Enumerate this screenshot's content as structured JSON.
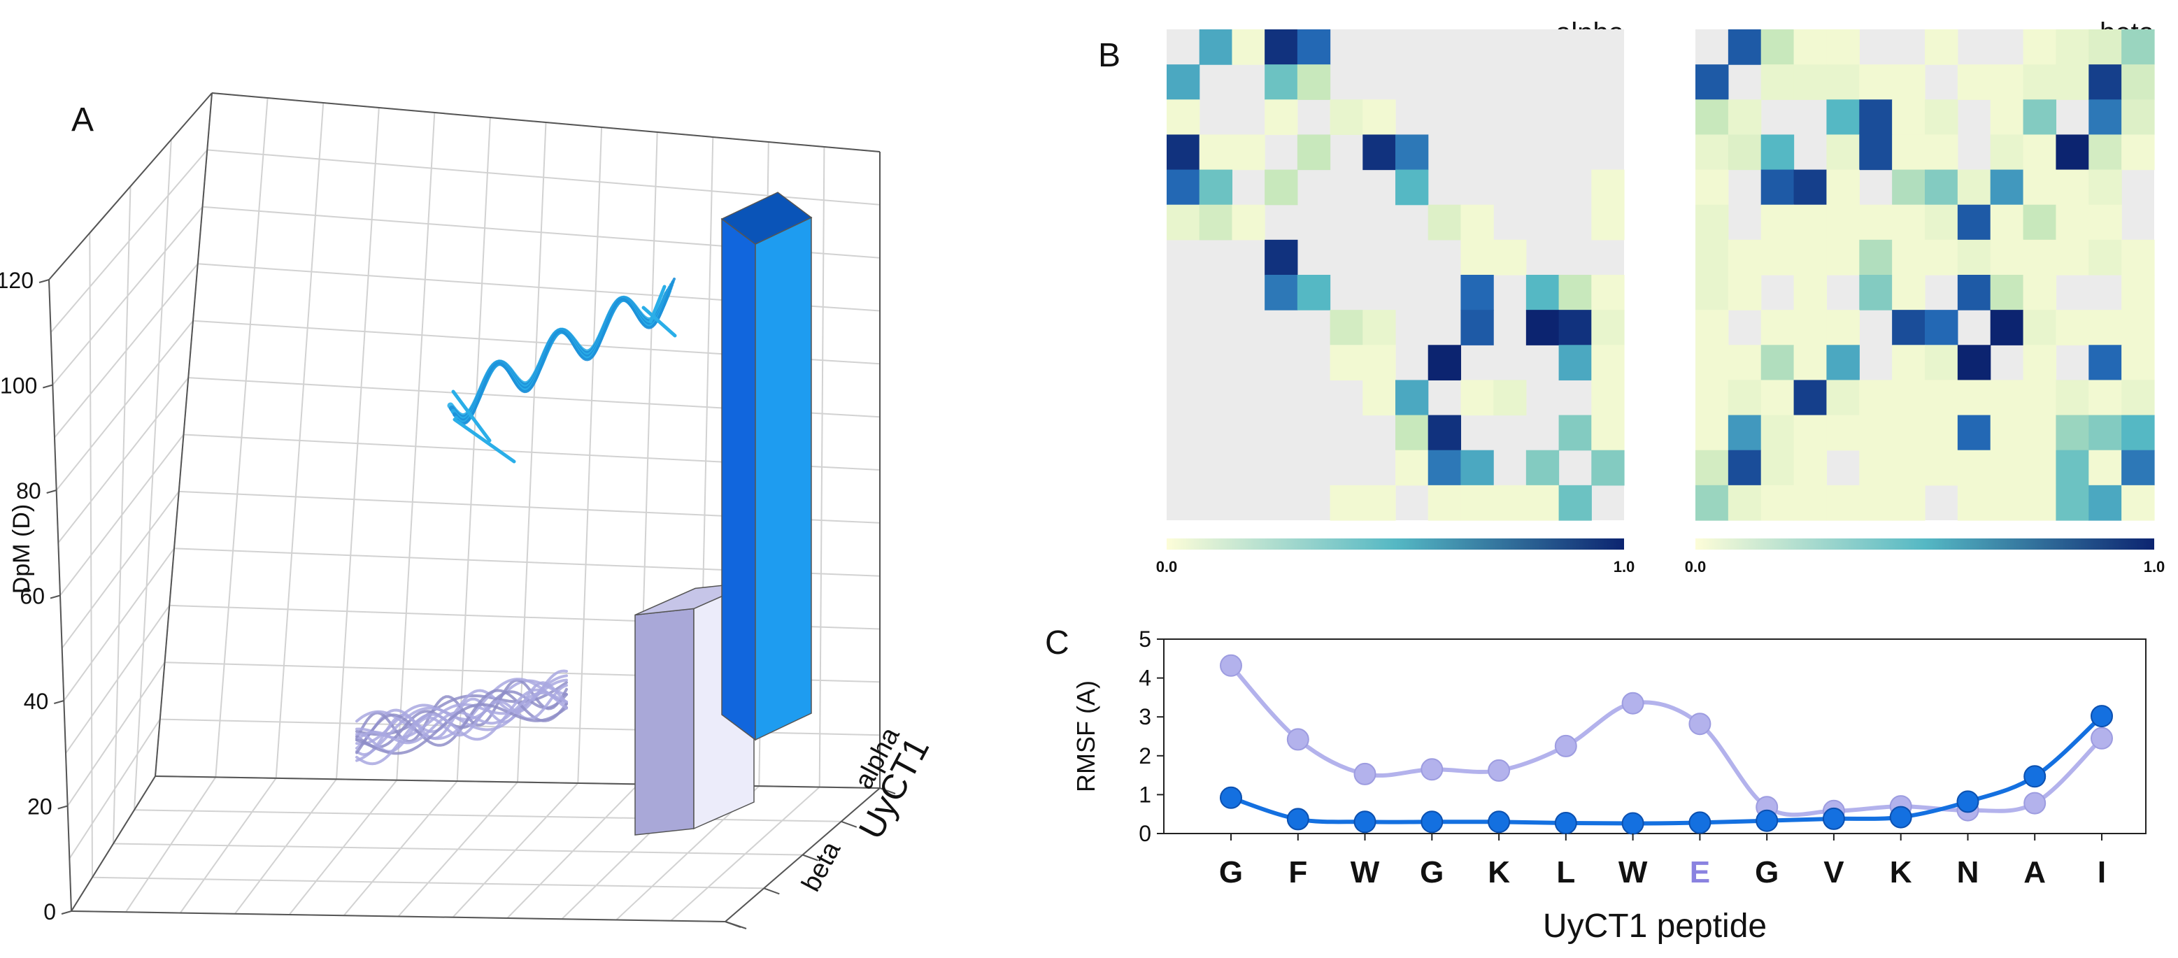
{
  "panels": {
    "A": "A",
    "B": "B",
    "C": "C"
  },
  "colors": {
    "alpha": "#1166dd",
    "alpha_side": "#1e9cf0",
    "alpha_top": "#0a54b8",
    "beta": "#a9a8d8",
    "beta_side": "#ececfa",
    "beta_top": "#c6c5e8",
    "helix": "#2aaee8",
    "coil": "#a9a8e0",
    "heat_low": "#fdfdd8",
    "heat_mid": "#55b8c4",
    "heat_high": "#0c2470",
    "heat_empty": "#ebebeb",
    "rmsf_alpha": "#1470e0",
    "rmsf_beta": "#b3b2ec",
    "residue_highlight": "#8a82e0"
  },
  "chart_data": [
    {
      "type": "bar",
      "subtype": "3d-bar",
      "panel": "A",
      "title": "",
      "ylabel": "DpM (D)",
      "zlabel": "UyCT1",
      "ylim": [
        0,
        120
      ],
      "yticks": [
        0,
        20,
        40,
        60,
        80,
        100,
        120
      ],
      "categories": [
        "beta",
        "alpha"
      ],
      "values": [
        47,
        107
      ],
      "grid": true,
      "legend": "none"
    },
    {
      "type": "heatmap",
      "panel": "B",
      "title": "alpha",
      "size": 14,
      "colorbar": {
        "min": "0.0",
        "max": "1.0"
      },
      "nonzero_cells": [
        [
          0,
          1,
          0.55
        ],
        [
          0,
          2,
          0.05
        ],
        [
          0,
          3,
          0.95
        ],
        [
          0,
          4,
          0.75
        ],
        [
          1,
          0,
          0.55
        ],
        [
          1,
          3,
          0.45
        ],
        [
          1,
          4,
          0.25
        ],
        [
          2,
          0,
          0.05
        ],
        [
          2,
          3,
          0.05
        ],
        [
          2,
          5,
          0.1
        ],
        [
          2,
          6,
          0.05
        ],
        [
          3,
          0,
          0.95
        ],
        [
          3,
          1,
          0.05
        ],
        [
          3,
          2,
          0.05
        ],
        [
          3,
          4,
          0.25
        ],
        [
          3,
          6,
          0.95
        ],
        [
          3,
          7,
          0.7
        ],
        [
          4,
          0,
          0.75
        ],
        [
          4,
          1,
          0.45
        ],
        [
          4,
          3,
          0.25
        ],
        [
          4,
          7,
          0.5
        ],
        [
          4,
          13,
          0.05
        ],
        [
          5,
          0,
          0.1
        ],
        [
          5,
          1,
          0.2
        ],
        [
          5,
          2,
          0.05
        ],
        [
          5,
          8,
          0.15
        ],
        [
          5,
          9,
          0.05
        ],
        [
          5,
          13,
          0.05
        ],
        [
          6,
          3,
          0.95
        ],
        [
          6,
          9,
          0.05
        ],
        [
          6,
          10,
          0.05
        ],
        [
          7,
          3,
          0.7
        ],
        [
          7,
          4,
          0.5
        ],
        [
          7,
          9,
          0.75
        ],
        [
          7,
          11,
          0.5
        ],
        [
          7,
          12,
          0.25
        ],
        [
          7,
          13,
          0.05
        ],
        [
          8,
          5,
          0.2
        ],
        [
          8,
          6,
          0.1
        ],
        [
          8,
          9,
          0.8
        ],
        [
          8,
          11,
          1.0
        ],
        [
          8,
          12,
          0.95
        ],
        [
          8,
          13,
          0.1
        ],
        [
          9,
          5,
          0.05
        ],
        [
          9,
          6,
          0.05
        ],
        [
          9,
          8,
          1.0
        ],
        [
          9,
          12,
          0.55
        ],
        [
          9,
          13,
          0.05
        ],
        [
          10,
          6,
          0.05
        ],
        [
          10,
          7,
          0.55
        ],
        [
          10,
          9,
          0.05
        ],
        [
          10,
          10,
          0.1
        ],
        [
          10,
          13,
          0.05
        ],
        [
          11,
          7,
          0.25
        ],
        [
          11,
          8,
          0.95
        ],
        [
          11,
          12,
          0.4
        ],
        [
          11,
          13,
          0.05
        ],
        [
          12,
          7,
          0.05
        ],
        [
          12,
          8,
          0.7
        ],
        [
          12,
          9,
          0.55
        ],
        [
          12,
          11,
          0.4
        ],
        [
          12,
          13,
          0.4
        ],
        [
          13,
          5,
          0.05
        ],
        [
          13,
          6,
          0.05
        ],
        [
          13,
          8,
          0.05
        ],
        [
          13,
          9,
          0.05
        ],
        [
          13,
          10,
          0.05
        ],
        [
          13,
          11,
          0.05
        ],
        [
          13,
          12,
          0.45
        ]
      ]
    },
    {
      "type": "heatmap",
      "panel": "B",
      "title": "beta",
      "size": 14,
      "colorbar": {
        "min": "0.0",
        "max": "1.0"
      },
      "nonzero_cells": [
        [
          0,
          1,
          0.8
        ],
        [
          0,
          2,
          0.25
        ],
        [
          0,
          3,
          0.05
        ],
        [
          0,
          4,
          0.05
        ],
        [
          0,
          7,
          0.05
        ],
        [
          0,
          10,
          0.05
        ],
        [
          0,
          11,
          0.1
        ],
        [
          0,
          12,
          0.15
        ],
        [
          0,
          13,
          0.35
        ],
        [
          1,
          0,
          0.8
        ],
        [
          1,
          2,
          0.1
        ],
        [
          1,
          3,
          0.1
        ],
        [
          1,
          4,
          0.1
        ],
        [
          1,
          5,
          0.05
        ],
        [
          1,
          6,
          0.05
        ],
        [
          1,
          8,
          0.05
        ],
        [
          1,
          9,
          0.05
        ],
        [
          1,
          10,
          0.1
        ],
        [
          1,
          11,
          0.1
        ],
        [
          1,
          12,
          0.9
        ],
        [
          1,
          13,
          0.2
        ],
        [
          2,
          0,
          0.25
        ],
        [
          2,
          1,
          0.1
        ],
        [
          2,
          4,
          0.5
        ],
        [
          2,
          5,
          0.85
        ],
        [
          2,
          6,
          0.05
        ],
        [
          2,
          7,
          0.1
        ],
        [
          2,
          9,
          0.05
        ],
        [
          2,
          10,
          0.4
        ],
        [
          2,
          12,
          0.7
        ],
        [
          2,
          13,
          0.15
        ],
        [
          3,
          0,
          0.1
        ],
        [
          3,
          1,
          0.15
        ],
        [
          3,
          2,
          0.5
        ],
        [
          3,
          4,
          0.1
        ],
        [
          3,
          5,
          0.85
        ],
        [
          3,
          6,
          0.05
        ],
        [
          3,
          7,
          0.05
        ],
        [
          3,
          9,
          0.1
        ],
        [
          3,
          10,
          0.05
        ],
        [
          3,
          11,
          1.0
        ],
        [
          3,
          12,
          0.2
        ],
        [
          3,
          13,
          0.05
        ],
        [
          4,
          0,
          0.05
        ],
        [
          4,
          2,
          0.8
        ],
        [
          4,
          3,
          0.9
        ],
        [
          4,
          4,
          0.05
        ],
        [
          4,
          6,
          0.3
        ],
        [
          4,
          7,
          0.4
        ],
        [
          4,
          8,
          0.1
        ],
        [
          4,
          9,
          0.6
        ],
        [
          4,
          10,
          0.05
        ],
        [
          4,
          11,
          0.05
        ],
        [
          4,
          12,
          0.1
        ],
        [
          5,
          0,
          0.1
        ],
        [
          5,
          2,
          0.05
        ],
        [
          5,
          3,
          0.05
        ],
        [
          5,
          4,
          0.05
        ],
        [
          5,
          5,
          0.05
        ],
        [
          5,
          6,
          0.05
        ],
        [
          5,
          7,
          0.1
        ],
        [
          5,
          8,
          0.8
        ],
        [
          5,
          9,
          0.05
        ],
        [
          5,
          10,
          0.25
        ],
        [
          5,
          11,
          0.05
        ],
        [
          5,
          12,
          0.05
        ],
        [
          6,
          0,
          0.1
        ],
        [
          6,
          1,
          0.05
        ],
        [
          6,
          2,
          0.05
        ],
        [
          6,
          3,
          0.05
        ],
        [
          6,
          4,
          0.05
        ],
        [
          6,
          5,
          0.3
        ],
        [
          6,
          6,
          0.05
        ],
        [
          6,
          7,
          0.05
        ],
        [
          6,
          8,
          0.1
        ],
        [
          6,
          9,
          0.05
        ],
        [
          6,
          10,
          0.05
        ],
        [
          6,
          11,
          0.05
        ],
        [
          6,
          12,
          0.1
        ],
        [
          6,
          13,
          0.05
        ],
        [
          7,
          0,
          0.1
        ],
        [
          7,
          1,
          0.05
        ],
        [
          7,
          3,
          0.05
        ],
        [
          7,
          5,
          0.4
        ],
        [
          7,
          6,
          0.05
        ],
        [
          7,
          8,
          0.8
        ],
        [
          7,
          9,
          0.25
        ],
        [
          7,
          10,
          0.05
        ],
        [
          7,
          13,
          0.05
        ],
        [
          8,
          0,
          0.05
        ],
        [
          8,
          2,
          0.05
        ],
        [
          8,
          3,
          0.05
        ],
        [
          8,
          4,
          0.05
        ],
        [
          8,
          6,
          0.85
        ],
        [
          8,
          7,
          0.75
        ],
        [
          8,
          9,
          1.0
        ],
        [
          8,
          10,
          0.1
        ],
        [
          8,
          11,
          0.05
        ],
        [
          8,
          12,
          0.05
        ],
        [
          8,
          13,
          0.05
        ],
        [
          9,
          0,
          0.05
        ],
        [
          9,
          1,
          0.05
        ],
        [
          9,
          2,
          0.3
        ],
        [
          9,
          3,
          0.05
        ],
        [
          9,
          4,
          0.55
        ],
        [
          9,
          6,
          0.05
        ],
        [
          9,
          7,
          0.1
        ],
        [
          9,
          8,
          1.0
        ],
        [
          9,
          10,
          0.05
        ],
        [
          9,
          12,
          0.75
        ],
        [
          9,
          13,
          0.05
        ],
        [
          10,
          0,
          0.05
        ],
        [
          10,
          1,
          0.1
        ],
        [
          10,
          2,
          0.05
        ],
        [
          10,
          3,
          0.9
        ],
        [
          10,
          4,
          0.1
        ],
        [
          10,
          5,
          0.05
        ],
        [
          10,
          6,
          0.05
        ],
        [
          10,
          7,
          0.05
        ],
        [
          10,
          8,
          0.05
        ],
        [
          10,
          9,
          0.05
        ],
        [
          10,
          10,
          0.05
        ],
        [
          10,
          11,
          0.1
        ],
        [
          10,
          12,
          0.05
        ],
        [
          10,
          13,
          0.1
        ],
        [
          11,
          0,
          0.05
        ],
        [
          11,
          1,
          0.6
        ],
        [
          11,
          2,
          0.1
        ],
        [
          11,
          3,
          0.05
        ],
        [
          11,
          4,
          0.05
        ],
        [
          11,
          5,
          0.05
        ],
        [
          11,
          6,
          0.05
        ],
        [
          11,
          7,
          0.05
        ],
        [
          11,
          8,
          0.75
        ],
        [
          11,
          9,
          0.05
        ],
        [
          11,
          10,
          0.05
        ],
        [
          11,
          11,
          0.35
        ],
        [
          11,
          12,
          0.4
        ],
        [
          11,
          13,
          0.5
        ],
        [
          12,
          0,
          0.2
        ],
        [
          12,
          1,
          0.85
        ],
        [
          12,
          2,
          0.1
        ],
        [
          12,
          3,
          0.05
        ],
        [
          12,
          5,
          0.05
        ],
        [
          12,
          6,
          0.05
        ],
        [
          12,
          7,
          0.05
        ],
        [
          12,
          8,
          0.05
        ],
        [
          12,
          9,
          0.05
        ],
        [
          12,
          10,
          0.05
        ],
        [
          12,
          11,
          0.45
        ],
        [
          12,
          12,
          0.05
        ],
        [
          12,
          13,
          0.7
        ],
        [
          13,
          0,
          0.35
        ],
        [
          13,
          1,
          0.1
        ],
        [
          13,
          2,
          0.05
        ],
        [
          13,
          3,
          0.05
        ],
        [
          13,
          4,
          0.05
        ],
        [
          13,
          5,
          0.05
        ],
        [
          13,
          6,
          0.05
        ],
        [
          13,
          8,
          0.05
        ],
        [
          13,
          9,
          0.05
        ],
        [
          13,
          10,
          0.05
        ],
        [
          13,
          11,
          0.45
        ],
        [
          13,
          12,
          0.55
        ],
        [
          13,
          13,
          0.05
        ]
      ]
    },
    {
      "type": "line",
      "panel": "C",
      "title": "",
      "xlabel": "UyCT1 peptide",
      "ylabel": "RMSF (A)",
      "ylim": [
        0,
        5
      ],
      "yticks": [
        0,
        1,
        2,
        3,
        4,
        5
      ],
      "categories": [
        "G",
        "F",
        "W",
        "G",
        "K",
        "L",
        "W",
        "E",
        "G",
        "V",
        "K",
        "N",
        "A",
        "I"
      ],
      "highlight_index": 7,
      "series": [
        {
          "name": "beta",
          "values": [
            4.32,
            2.42,
            1.53,
            1.65,
            1.62,
            2.25,
            3.35,
            2.82,
            0.68,
            0.58,
            0.7,
            0.6,
            0.78,
            2.45
          ]
        },
        {
          "name": "alpha",
          "values": [
            0.92,
            0.37,
            0.3,
            0.3,
            0.3,
            0.27,
            0.26,
            0.28,
            0.33,
            0.38,
            0.42,
            0.82,
            1.47,
            3.02
          ]
        }
      ],
      "legend": "none"
    }
  ]
}
